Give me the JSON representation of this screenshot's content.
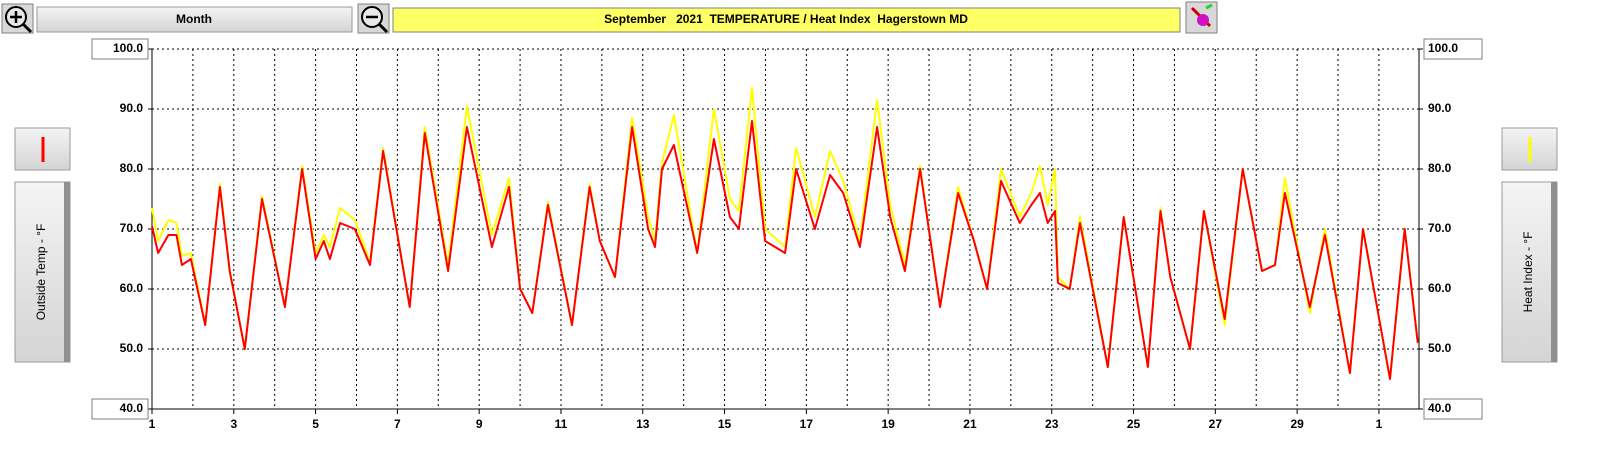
{
  "ui": {
    "period_button": "Month"
  },
  "chart_data": {
    "type": "line",
    "title": "September   2021  TEMPERATURE / Heat Index  Hagerstown MD",
    "x": [
      0,
      0.15,
      0.4,
      0.6,
      0.73,
      0.95,
      1.3,
      1.66,
      1.9,
      2.27,
      2.69,
      3.25,
      3.67,
      4.0,
      4.2,
      4.35,
      4.6,
      4.96,
      5.33,
      5.65,
      6.3,
      6.67,
      7.24,
      7.7,
      8.31,
      8.73,
      9.0,
      9.3,
      9.68,
      10.27,
      10.7,
      10.95,
      11.32,
      11.74,
      12.13,
      12.3,
      12.47,
      12.76,
      13.33,
      13.74,
      14.13,
      14.35,
      14.67,
      14.99,
      15.48,
      15.75,
      16.21,
      16.58,
      16.9,
      17.31,
      17.73,
      18.05,
      18.41,
      18.78,
      19.27,
      19.71,
      20.1,
      20.42,
      20.76,
      21.22,
      21.5,
      21.71,
      21.9,
      22.08,
      22.15,
      22.44,
      22.69,
      23.37,
      23.76,
      24.35,
      24.66,
      24.9,
      25.38,
      25.72,
      26.23,
      26.67,
      27.14,
      27.46,
      27.7,
      28.31,
      28.68,
      29.29,
      29.61,
      30.27,
      30.63,
      30.95
    ],
    "series": [
      {
        "name": "Heat Index - °F",
        "color": "#ffff00",
        "axis": "y2",
        "values": [
          73.5,
          68,
          71.5,
          71,
          65.5,
          66,
          54,
          77.5,
          63,
          50,
          75.5,
          57,
          80.5,
          66,
          69,
          67,
          73.5,
          71.5,
          64.5,
          83.5,
          57,
          87,
          64,
          90.5,
          69,
          78.5,
          60,
          56,
          74.5,
          54,
          77.5,
          68,
          62,
          88.5,
          72,
          68,
          81,
          89,
          66,
          90,
          75,
          73,
          93.5,
          70,
          67,
          83.5,
          72,
          83,
          78,
          68,
          91.5,
          74,
          64,
          80.5,
          57,
          77,
          68,
          60,
          80,
          72,
          76,
          80.5,
          74,
          80,
          62,
          60,
          72,
          47,
          72,
          47,
          73.5,
          62,
          50,
          73,
          54,
          80,
          63,
          64,
          78.5,
          56,
          70,
          46,
          70,
          45,
          70,
          51
        ]
      },
      {
        "name": "Outside Temp - °F",
        "color": "#ff0000",
        "values": [
          70.5,
          66,
          69,
          69,
          64,
          65,
          54,
          77,
          63,
          50,
          75,
          57,
          80,
          65,
          68,
          65,
          71,
          70,
          64,
          83,
          57,
          86,
          63,
          87,
          67,
          77,
          60,
          56,
          74,
          54,
          77,
          68,
          62,
          87,
          70,
          67,
          80,
          84,
          66,
          85,
          72,
          70,
          88,
          68,
          66,
          80,
          70,
          79,
          76,
          67,
          87,
          72,
          63,
          80,
          57,
          76,
          68,
          60,
          78,
          71,
          74,
          76,
          71,
          73,
          61,
          60,
          71,
          47,
          72,
          47,
          73,
          62,
          50,
          73,
          55,
          80,
          63,
          64,
          76,
          57,
          69,
          46,
          70,
          45,
          70,
          51
        ]
      }
    ],
    "xlim": [
      0,
      30.98
    ],
    "xticks": [
      {
        "value": 0,
        "label": "1"
      },
      {
        "value": 2,
        "label": "3"
      },
      {
        "value": 4,
        "label": "5"
      },
      {
        "value": 6,
        "label": "7"
      },
      {
        "value": 8,
        "label": "9"
      },
      {
        "value": 10,
        "label": "11"
      },
      {
        "value": 12,
        "label": "13"
      },
      {
        "value": 14,
        "label": "15"
      },
      {
        "value": 16,
        "label": "17"
      },
      {
        "value": 18,
        "label": "19"
      },
      {
        "value": 20,
        "label": "21"
      },
      {
        "value": 22,
        "label": "23"
      },
      {
        "value": 24,
        "label": "25"
      },
      {
        "value": 26,
        "label": "27"
      },
      {
        "value": 28,
        "label": "29"
      },
      {
        "value": 30,
        "label": "1"
      }
    ],
    "xgrid": [
      1,
      2,
      3,
      4,
      5,
      6,
      7,
      8,
      9,
      10,
      11,
      12,
      13,
      14,
      15,
      16,
      17,
      18,
      19,
      20,
      21,
      22,
      23,
      24,
      25,
      26,
      27,
      28,
      29,
      30
    ],
    "ylim": [
      40,
      100
    ],
    "yticks": [
      {
        "value": 40,
        "label": "40.0"
      },
      {
        "value": 50,
        "label": "50.0"
      },
      {
        "value": 60,
        "label": "60.0"
      },
      {
        "value": 70,
        "label": "70.0"
      },
      {
        "value": 80,
        "label": "80.0"
      },
      {
        "value": 90,
        "label": "90.0"
      },
      {
        "value": 100,
        "label": "100.0"
      }
    ],
    "y2lim": [
      40,
      100
    ],
    "y2ticks": [
      {
        "value": 40,
        "label": "40.0"
      },
      {
        "value": 50,
        "label": "50.0"
      },
      {
        "value": 60,
        "label": "60.0"
      },
      {
        "value": 70,
        "label": "70.0"
      },
      {
        "value": 80,
        "label": "80.0"
      },
      {
        "value": 90,
        "label": "90.0"
      },
      {
        "value": 100,
        "label": "100.0"
      }
    ],
    "grid": true
  }
}
